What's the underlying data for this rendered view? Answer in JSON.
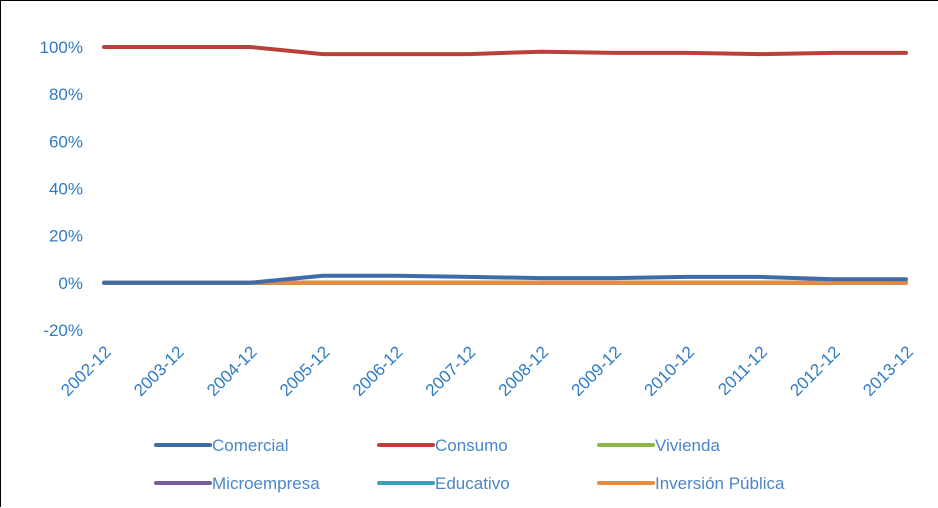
{
  "chart_data": {
    "type": "line",
    "title": "",
    "xlabel": "",
    "ylabel": "",
    "ylim": [
      -20,
      100
    ],
    "y_tick_step": 20,
    "y_tick_format": "percent",
    "grid": false,
    "legend_position": "bottom",
    "categories": [
      "2002-12",
      "2003-12",
      "2004-12",
      "2005-12",
      "2006-12",
      "2007-12",
      "2008-12",
      "2009-12",
      "2010-12",
      "2011-12",
      "2012-12",
      "2013-12"
    ],
    "series": [
      {
        "name": "Comercial",
        "color": "#3f6ba8",
        "values": [
          0,
          0,
          0,
          3,
          3,
          2.5,
          2,
          2,
          2.5,
          2.5,
          1.5,
          1.5
        ]
      },
      {
        "name": "Consumo",
        "color": "#b8413b",
        "values": [
          100,
          100,
          100,
          97,
          97,
          97,
          98,
          97.5,
          97.5,
          97,
          97.5,
          97.5
        ]
      },
      {
        "name": "Vivienda",
        "color": "#8cb84a",
        "values": [
          0,
          0,
          0,
          0,
          0,
          0,
          0,
          0,
          0,
          0,
          0,
          0
        ]
      },
      {
        "name": "Microempresa",
        "color": "#7a5b9c",
        "values": [
          0,
          0,
          0,
          0,
          0,
          0,
          0,
          0,
          0,
          0,
          0,
          0
        ]
      },
      {
        "name": "Educativo",
        "color": "#3d9db5",
        "values": [
          0,
          0,
          0,
          0,
          0,
          0,
          0,
          0,
          0,
          0,
          0,
          0
        ]
      },
      {
        "name": "Inversión Pública",
        "color": "#ec8a3a",
        "values": [
          0,
          0,
          0,
          0,
          0,
          0,
          0,
          0,
          0,
          0,
          0,
          0
        ]
      }
    ]
  }
}
